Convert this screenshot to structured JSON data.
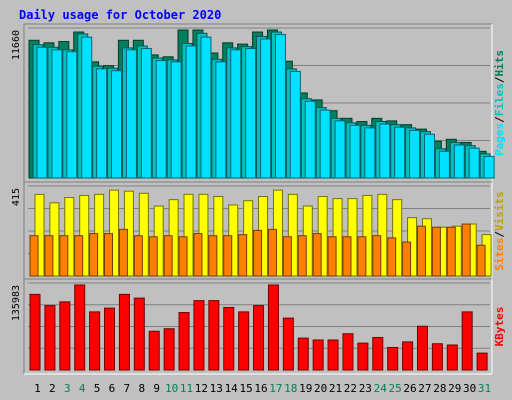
{
  "chart_data": [
    {
      "type": "bar",
      "panel": "hits-files-pages",
      "title": "Daily usage for October 2020",
      "categories": [
        "1",
        "2",
        "3",
        "4",
        "5",
        "6",
        "7",
        "8",
        "9",
        "10",
        "11",
        "12",
        "13",
        "14",
        "15",
        "16",
        "17",
        "18",
        "19",
        "20",
        "21",
        "22",
        "23",
        "24",
        "25",
        "26",
        "27",
        "28",
        "29",
        "30",
        "31"
      ],
      "weekend_categories": [
        "3",
        "4",
        "10",
        "11",
        "17",
        "18",
        "24",
        "25",
        "31"
      ],
      "y_max_label": "11660",
      "ylim": [
        0,
        11660
      ],
      "grid": true,
      "series": [
        {
          "name": "Hits",
          "color": "#00805c",
          "values": [
            10850,
            10650,
            10750,
            11500,
            9150,
            8850,
            10850,
            10850,
            9700,
            9550,
            11660,
            11660,
            9850,
            10650,
            10550,
            11500,
            11660,
            9200,
            6700,
            6150,
            5300,
            4700,
            4450,
            4700,
            4500,
            4200,
            3850,
            2900,
            3050,
            2800,
            2100
          ]
        },
        {
          "name": "Files",
          "color": "#00c0c0",
          "values": [
            10500,
            10300,
            10100,
            11350,
            8800,
            8650,
            10250,
            10400,
            9450,
            9300,
            10600,
            11400,
            9350,
            10250,
            10350,
            11150,
            11500,
            8600,
            6250,
            5550,
            4700,
            4350,
            4150,
            4450,
            4200,
            3950,
            3650,
            2300,
            2800,
            2550,
            1900
          ]
        },
        {
          "name": "Pages",
          "color": "#00e0ff",
          "values": [
            10300,
            10100,
            9950,
            11100,
            8600,
            8450,
            10100,
            10200,
            9250,
            9150,
            10400,
            11100,
            9150,
            10100,
            10200,
            10950,
            11300,
            8400,
            6050,
            5350,
            4500,
            4150,
            3950,
            4250,
            4000,
            3750,
            3450,
            2100,
            2600,
            2350,
            1700
          ]
        }
      ]
    },
    {
      "type": "bar",
      "panel": "visits-sites",
      "categories": [
        "1",
        "2",
        "3",
        "4",
        "5",
        "6",
        "7",
        "8",
        "9",
        "10",
        "11",
        "12",
        "13",
        "14",
        "15",
        "16",
        "17",
        "18",
        "19",
        "20",
        "21",
        "22",
        "23",
        "24",
        "25",
        "26",
        "27",
        "28",
        "29",
        "30",
        "31"
      ],
      "y_max_label": "415",
      "ylim": [
        0,
        415
      ],
      "grid": true,
      "series": [
        {
          "name": "Visits",
          "color": "#ffff00",
          "values": [
            385,
            345,
            370,
            380,
            385,
            405,
            400,
            390,
            330,
            360,
            385,
            385,
            375,
            335,
            355,
            375,
            405,
            385,
            330,
            375,
            365,
            365,
            380,
            385,
            360,
            275,
            270,
            230,
            235,
            245,
            195
          ]
        },
        {
          "name": "Sites",
          "color": "#ff8000",
          "values": [
            190,
            190,
            190,
            190,
            200,
            200,
            220,
            190,
            185,
            190,
            185,
            200,
            190,
            190,
            195,
            215,
            220,
            185,
            190,
            200,
            185,
            185,
            185,
            190,
            180,
            160,
            235,
            230,
            230,
            245,
            145
          ]
        }
      ]
    },
    {
      "type": "bar",
      "panel": "kbytes",
      "categories": [
        "1",
        "2",
        "3",
        "4",
        "5",
        "6",
        "7",
        "8",
        "9",
        "10",
        "11",
        "12",
        "13",
        "14",
        "15",
        "16",
        "17",
        "18",
        "19",
        "20",
        "21",
        "22",
        "23",
        "24",
        "25",
        "26",
        "27",
        "28",
        "29",
        "30",
        "31"
      ],
      "y_max_label": "135983",
      "ylim": [
        0,
        135983
      ],
      "grid": true,
      "series": [
        {
          "name": "KBytes",
          "color": "#ff0000",
          "values": [
            121000,
            103000,
            109000,
            135983,
            93000,
            99000,
            121000,
            115000,
            62000,
            66000,
            92000,
            111000,
            111000,
            100000,
            93000,
            103000,
            135983,
            83000,
            51000,
            48000,
            48000,
            58000,
            43000,
            52000,
            36000,
            45000,
            70000,
            42000,
            40000,
            93000,
            27000
          ]
        }
      ]
    }
  ]
}
